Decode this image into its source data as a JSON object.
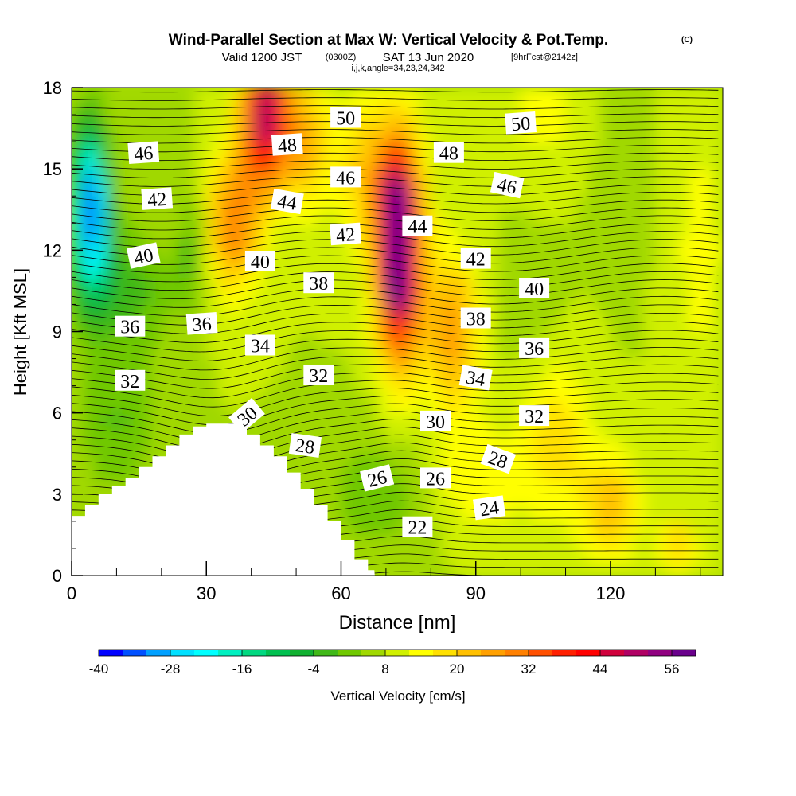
{
  "chart_data": {
    "type": "heatmap",
    "title": "Wind-Parallel Section at Max W: Vertical Velocity & Pot.Temp.",
    "title_mark": "(C)",
    "subtitle_parts": {
      "valid": "Valid 1200 JST",
      "utc": "(0300Z)",
      "date": "SAT 13 Jun 2020",
      "fcst": "[9hrFcst@2142z]"
    },
    "subtitle2": "i,j,k,angle=34,23,24,342",
    "xlabel": "Distance [nm]",
    "ylabel": "Height [Kft MSL]",
    "xlim": [
      0,
      145
    ],
    "ylim": [
      0,
      18
    ],
    "x_ticks": [
      0,
      30,
      60,
      90,
      120
    ],
    "x_tick_labels": [
      "0",
      "30",
      "60",
      "90",
      "120"
    ],
    "y_ticks": [
      0,
      3,
      6,
      9,
      12,
      15,
      18
    ],
    "y_tick_labels": [
      "0",
      "3",
      "6",
      "9",
      "12",
      "15",
      "18"
    ],
    "colorbar": {
      "label": "Vertical Velocity [cm/s]",
      "min": -40,
      "step": 4,
      "tick_values": [
        -40,
        -28,
        -16,
        -4,
        8,
        20,
        32,
        44,
        56
      ],
      "tick_labels": [
        "-40",
        "-28",
        "-16",
        "-4",
        "8",
        "20",
        "32",
        "44",
        "56"
      ],
      "colors": [
        "#0000ff",
        "#0050ff",
        "#00a0ff",
        "#00e0ff",
        "#00ffff",
        "#00f0c0",
        "#00d880",
        "#00c050",
        "#10b030",
        "#40b818",
        "#70c800",
        "#a0d800",
        "#d0f000",
        "#ffff00",
        "#ffe000",
        "#ffc000",
        "#ffa000",
        "#ff8000",
        "#ff5000",
        "#ff2000",
        "#ff0000",
        "#d0003c",
        "#b00064",
        "#900080",
        "#6a008c"
      ]
    },
    "grid": false,
    "terrain_profile": {
      "x": [
        0,
        3,
        6,
        9,
        12,
        15,
        18,
        21,
        24,
        27,
        30,
        33,
        36,
        39,
        42,
        45,
        48,
        51,
        54,
        57,
        60,
        63,
        66
      ],
      "height": [
        2.2,
        2.6,
        3.0,
        3.3,
        3.6,
        4.0,
        4.4,
        4.8,
        5.2,
        5.5,
        5.6,
        5.6,
        5.6,
        5.2,
        4.8,
        4.4,
        3.8,
        3.2,
        2.6,
        2.0,
        1.3,
        0.6,
        0.2
      ]
    },
    "isentrope_labels": [
      {
        "text": "50",
        "x": 61,
        "y": 16.9,
        "rot": 0
      },
      {
        "text": "50",
        "x": 100,
        "y": 16.7,
        "rot": -4
      },
      {
        "text": "48",
        "x": 48,
        "y": 15.9,
        "rot": -4
      },
      {
        "text": "48",
        "x": 84,
        "y": 15.6,
        "rot": 0
      },
      {
        "text": "46",
        "x": 16,
        "y": 15.6,
        "rot": -4
      },
      {
        "text": "46",
        "x": 61,
        "y": 14.7,
        "rot": 0
      },
      {
        "text": "46",
        "x": 97,
        "y": 14.4,
        "rot": 12
      },
      {
        "text": "44",
        "x": 48,
        "y": 13.8,
        "rot": 10
      },
      {
        "text": "44",
        "x": 77,
        "y": 12.9,
        "rot": 0
      },
      {
        "text": "42",
        "x": 19,
        "y": 13.9,
        "rot": -4
      },
      {
        "text": "42",
        "x": 61,
        "y": 12.6,
        "rot": -4
      },
      {
        "text": "42",
        "x": 90,
        "y": 11.7,
        "rot": 0
      },
      {
        "text": "40",
        "x": 16,
        "y": 11.8,
        "rot": -12
      },
      {
        "text": "40",
        "x": 42,
        "y": 11.6,
        "rot": 0
      },
      {
        "text": "40",
        "x": 103,
        "y": 10.6,
        "rot": 0
      },
      {
        "text": "38",
        "x": 55,
        "y": 10.8,
        "rot": 0
      },
      {
        "text": "38",
        "x": 90,
        "y": 9.5,
        "rot": 0
      },
      {
        "text": "36",
        "x": 13,
        "y": 9.2,
        "rot": 0
      },
      {
        "text": "36",
        "x": 29,
        "y": 9.3,
        "rot": -4
      },
      {
        "text": "36",
        "x": 103,
        "y": 8.4,
        "rot": 0
      },
      {
        "text": "34",
        "x": 42,
        "y": 8.5,
        "rot": 0
      },
      {
        "text": "34",
        "x": 90,
        "y": 7.3,
        "rot": 10
      },
      {
        "text": "32",
        "x": 13,
        "y": 7.2,
        "rot": 0
      },
      {
        "text": "32",
        "x": 55,
        "y": 7.4,
        "rot": 0
      },
      {
        "text": "32",
        "x": 103,
        "y": 5.9,
        "rot": 0
      },
      {
        "text": "30",
        "x": 39,
        "y": 5.9,
        "rot": -40
      },
      {
        "text": "30",
        "x": 81,
        "y": 5.7,
        "rot": 0
      },
      {
        "text": "28",
        "x": 52,
        "y": 4.8,
        "rot": 8
      },
      {
        "text": "28",
        "x": 95,
        "y": 4.3,
        "rot": 20
      },
      {
        "text": "26",
        "x": 68,
        "y": 3.6,
        "rot": -14
      },
      {
        "text": "26",
        "x": 81,
        "y": 3.6,
        "rot": 0
      },
      {
        "text": "24",
        "x": 93,
        "y": 2.5,
        "rot": -8
      },
      {
        "text": "22",
        "x": 77,
        "y": 1.8,
        "rot": 0
      }
    ]
  }
}
